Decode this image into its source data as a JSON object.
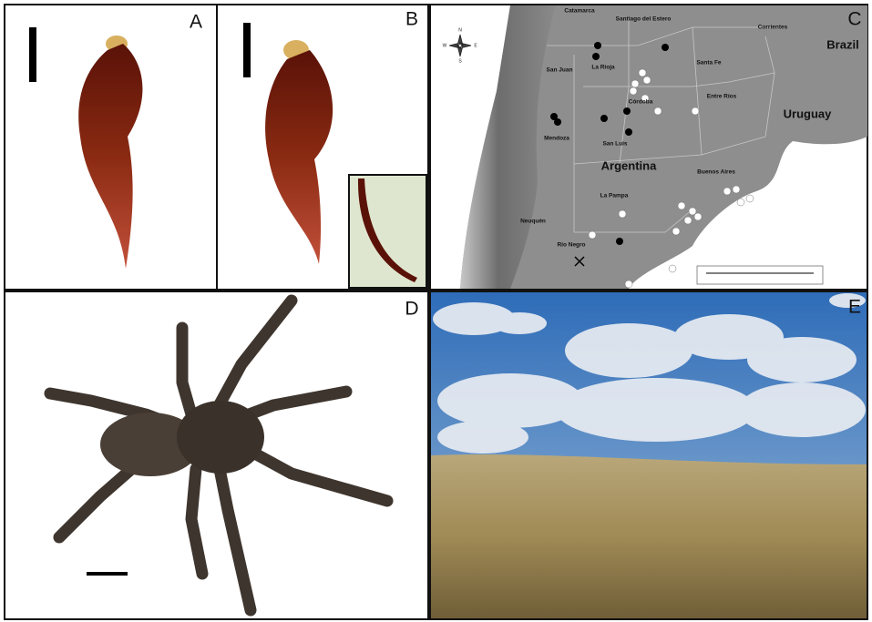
{
  "panel_labels": [
    "A",
    "B",
    "C",
    "D",
    "E"
  ],
  "map": {
    "labels": [
      "Catamarca",
      "Santiago del Estero",
      "Corrientes",
      "La Rioja",
      "San Juan",
      "Santa Fe",
      "Córdoba",
      "Entre Ríos",
      "Mendoza",
      "San Luis",
      "Buenos Aires",
      "La Pampa",
      "Neuquén",
      "Río Negro"
    ],
    "countries": [
      "Brazil",
      "Uruguay",
      "Argentina"
    ],
    "compass": [
      "N",
      "E",
      "S",
      "W"
    ]
  }
}
